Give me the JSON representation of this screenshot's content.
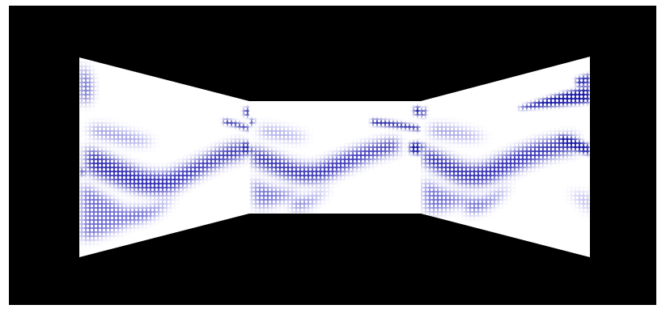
{
  "scene": {
    "type": "3d-corridor-render",
    "colors": {
      "frame": "#ffffff",
      "background": "#000000",
      "panel_base": "#ffffff",
      "texture_dark": "#1c1aa8",
      "texture_mid": "#4a48c8",
      "texture_light": "#9e9ce6"
    },
    "panels": [
      {
        "name": "left-wall-panel",
        "role": "left"
      },
      {
        "name": "back-wall-panel",
        "role": "center"
      },
      {
        "name": "right-wall-panel",
        "role": "right"
      }
    ]
  }
}
